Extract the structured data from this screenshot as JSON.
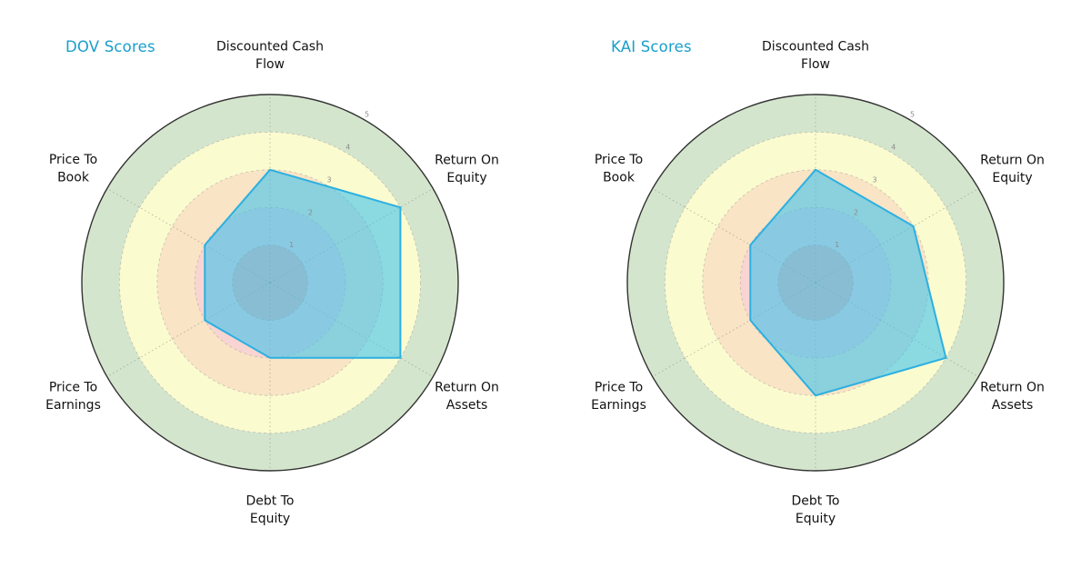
{
  "figure": {
    "background": "#ffffff"
  },
  "chart_data": [
    {
      "type": "radar",
      "title": "DOV Scores",
      "title_color": "#189fcb",
      "categories": [
        "Discounted Cash\nFlow",
        "Return On\nEquity",
        "Return On\nAssets",
        "Debt To\nEquity",
        "Price To\nEarnings",
        "Price To\nBook"
      ],
      "values": [
        3,
        4,
        4,
        2,
        2,
        2
      ],
      "r_ticks": [
        "1",
        "2",
        "3",
        "4",
        "5"
      ],
      "r_max": 5,
      "grid": "dashed",
      "legend": "none",
      "tick_label_color": "#8c8c8c",
      "axis_label_color": "#111111",
      "band_colors": [
        "#f4b3aa",
        "#f8d5d2",
        "#f9e4c5",
        "#fbfbd0",
        "#d4e5cd"
      ],
      "outer_ring_color": "#333333",
      "polygon_fill": "rgba(70,195,235,0.62)",
      "polygon_stroke": "#2cb0e1"
    },
    {
      "type": "radar",
      "title": "KAI Scores",
      "title_color": "#189fcb",
      "categories": [
        "Discounted Cash\nFlow",
        "Return On\nEquity",
        "Return On\nAssets",
        "Debt To\nEquity",
        "Price To\nEarnings",
        "Price To\nBook"
      ],
      "values": [
        3,
        3,
        4,
        3,
        2,
        2
      ],
      "r_ticks": [
        "1",
        "2",
        "3",
        "4",
        "5"
      ],
      "r_max": 5,
      "grid": "dashed",
      "legend": "none",
      "tick_label_color": "#8c8c8c",
      "axis_label_color": "#111111",
      "band_colors": [
        "#f4b3aa",
        "#f8d5d2",
        "#f9e4c5",
        "#fbfbd0",
        "#d4e5cd"
      ],
      "outer_ring_color": "#333333",
      "polygon_fill": "rgba(70,195,235,0.62)",
      "polygon_stroke": "#2cb0e1"
    }
  ]
}
